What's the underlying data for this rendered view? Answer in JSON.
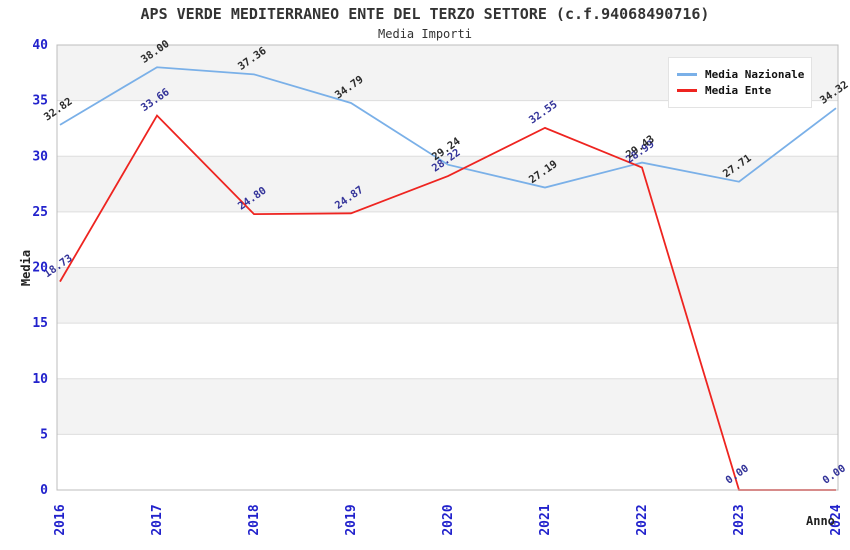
{
  "header": {
    "title": "APS VERDE MEDITERRANEO ENTE DEL TERZO SETTORE (c.f.94068490716)",
    "subtitle": "Media Importi"
  },
  "chart_data": {
    "type": "line",
    "title": "APS VERDE MEDITERRANEO ENTE DEL TERZO SETTORE (c.f.94068490716)",
    "subtitle": "Media Importi",
    "xlabel": "Anno",
    "ylabel": "Media",
    "categories": [
      "2016",
      "2017",
      "2018",
      "2019",
      "2020",
      "2021",
      "2022",
      "2023",
      "2024"
    ],
    "ylim": [
      0,
      40
    ],
    "yticks": [
      0,
      5,
      10,
      15,
      20,
      25,
      30,
      35,
      40
    ],
    "grid": "horizontal-bands-alternating",
    "legend_position": "top-right",
    "series": [
      {
        "name": "Media Nazionale",
        "color": "#7ab0e8",
        "label_color": "#2b2b2b",
        "values": [
          32.82,
          38.0,
          37.36,
          34.79,
          29.24,
          27.19,
          29.43,
          27.71,
          34.32
        ]
      },
      {
        "name": "Media Ente",
        "color": "#ee2420",
        "label_color": "#333399",
        "values": [
          18.73,
          33.66,
          24.8,
          24.87,
          28.22,
          32.55,
          28.99,
          0.0,
          0.0
        ]
      }
    ]
  },
  "colors": {
    "axis_tick_text": "#2222cc",
    "band_fill": "#f3f3f3",
    "grid_line": "#dedede",
    "plot_border": "#bcbcbc",
    "background": "#ffffff",
    "title_text": "#333333"
  }
}
